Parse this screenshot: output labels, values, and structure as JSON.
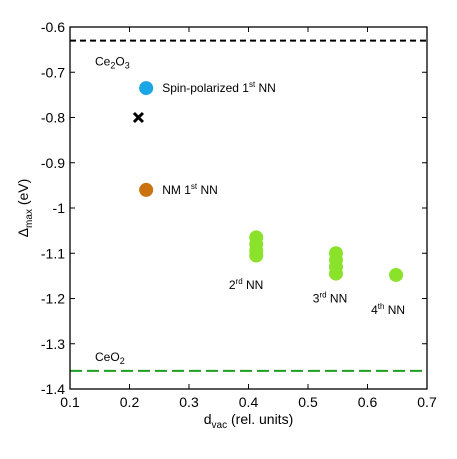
{
  "chart_data": {
    "type": "scatter",
    "xlim": [
      0.1,
      0.7
    ],
    "ylim": [
      -1.4,
      -0.6
    ],
    "x_ticks": [
      "0.1",
      "0.2",
      "0.3",
      "0.4",
      "0.5",
      "0.6",
      "0.7"
    ],
    "y_ticks": [
      "-0.6",
      "-0.7",
      "-0.8",
      "-0.9",
      "-1",
      "-1.1",
      "-1.2",
      "-1.3",
      "-1.4"
    ],
    "xlabel": {
      "base": "d",
      "sub": "vac",
      "rest": " (rel. units)"
    },
    "ylabel": {
      "base": "Δ",
      "sub": "max",
      "rest": " (eV)"
    },
    "reference_lines": [
      {
        "name": "Ce2O3",
        "label_base": "Ce",
        "label_sub1": "2",
        "label_mid": "O",
        "label_sub2": "3",
        "y": -0.63,
        "color": "#000000",
        "dash": "6,4"
      },
      {
        "name": "CeO2",
        "label_base": "CeO",
        "label_sub1": "2",
        "label_mid": "",
        "label_sub2": "",
        "y": -1.36,
        "color": "#1e9e1e",
        "dash": "12,5"
      }
    ],
    "series": [
      {
        "marker": "circle",
        "color": "#1aa6e6",
        "points": [
          {
            "x": 0.228,
            "y": -0.735
          }
        ]
      },
      {
        "marker": "x",
        "color": "#000000",
        "points": [
          {
            "x": 0.215,
            "y": -0.8
          }
        ]
      },
      {
        "marker": "circle",
        "color": "#c9720f",
        "points": [
          {
            "x": 0.228,
            "y": -0.96
          }
        ]
      },
      {
        "marker": "circle",
        "color": "#8be22a",
        "points": [
          {
            "x": 0.413,
            "y": -1.065
          },
          {
            "x": 0.413,
            "y": -1.08
          },
          {
            "x": 0.413,
            "y": -1.095
          },
          {
            "x": 0.413,
            "y": -1.105
          },
          {
            "x": 0.547,
            "y": -1.1
          },
          {
            "x": 0.547,
            "y": -1.115
          },
          {
            "x": 0.547,
            "y": -1.13
          },
          {
            "x": 0.547,
            "y": -1.145
          },
          {
            "x": 0.648,
            "y": -1.148
          }
        ]
      }
    ],
    "annotations": [
      {
        "pre": "Spin-polarized 1",
        "sup": "st",
        "post": " NN",
        "x": 0.255,
        "y": -0.735
      },
      {
        "pre": "NM 1",
        "sup": "st",
        "post": " NN",
        "x": 0.255,
        "y": -0.96
      },
      {
        "pre": "2",
        "sup": "rd",
        "post": "  NN",
        "x": 0.367,
        "y": -1.17
      },
      {
        "pre": "3",
        "sup": "rd",
        "post": " NN",
        "x": 0.508,
        "y": -1.2
      },
      {
        "pre": "4",
        "sup": "th",
        "post": " NN",
        "x": 0.606,
        "y": -1.225
      }
    ]
  }
}
